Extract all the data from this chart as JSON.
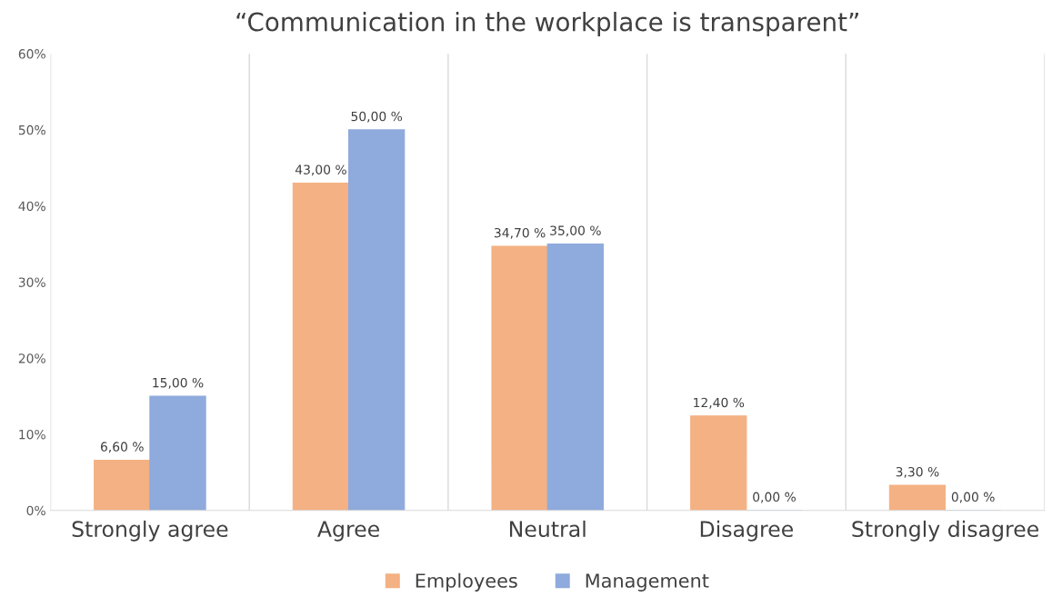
{
  "chart_data": {
    "type": "bar",
    "title": "“Communication in the workplace is transparent”",
    "categories": [
      "Strongly agree",
      "Agree",
      "Neutral",
      "Disagree",
      "Strongly disagree"
    ],
    "series": [
      {
        "name": "Employees",
        "color": "#f4b183",
        "values": [
          6.6,
          43.0,
          34.7,
          12.4,
          3.3
        ],
        "value_labels": [
          "6,60 %",
          "43,00 %",
          "34,70 %",
          "12,40 %",
          "3,30 %"
        ]
      },
      {
        "name": "Management",
        "color": "#8faadc",
        "values": [
          15.0,
          50.0,
          35.0,
          0.0,
          0.0
        ],
        "value_labels": [
          "15,00 %",
          "50,00 %",
          "35,00 %",
          "0,00 %",
          "0,00 %"
        ]
      }
    ],
    "ylim": [
      0,
      60
    ],
    "yticks": [
      {
        "value": 0,
        "label": "0%"
      },
      {
        "value": 10,
        "label": "10%"
      },
      {
        "value": 20,
        "label": "20%"
      },
      {
        "value": 30,
        "label": "30%"
      },
      {
        "value": 40,
        "label": "40%"
      },
      {
        "value": 50,
        "label": "50%"
      },
      {
        "value": 60,
        "label": "60%"
      }
    ],
    "grid": "x",
    "legend": "bottom"
  }
}
